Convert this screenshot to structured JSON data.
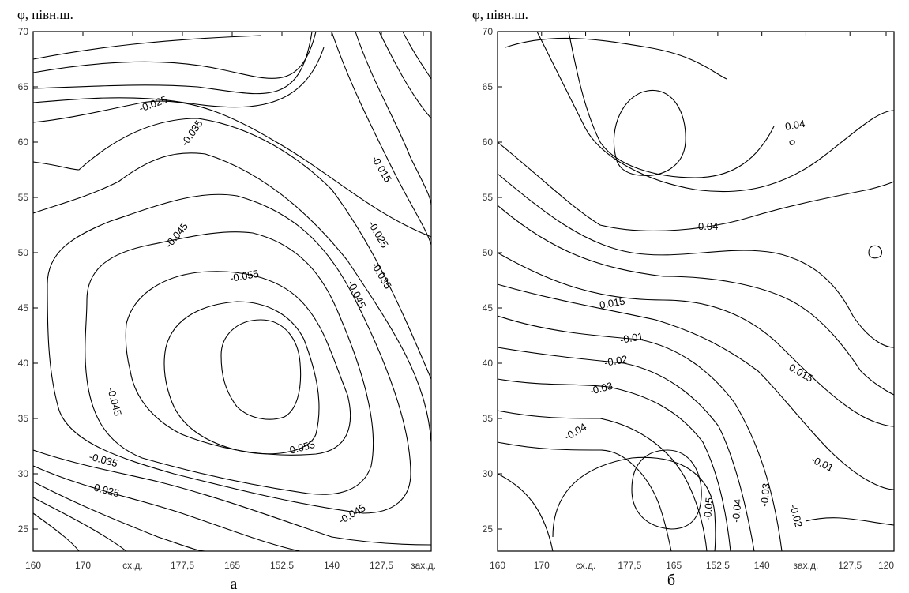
{
  "chart_data": [
    {
      "type": "contour",
      "panel_label": "а",
      "ylabel": "φ, півн.ш.",
      "yticks": [
        "70",
        "65",
        "60",
        "55",
        "50",
        "45",
        "40",
        "35",
        "30",
        "25"
      ],
      "xticks": [
        "160",
        "170",
        "сх.д.",
        "177,5",
        "165",
        "152,5",
        "140",
        "127,5",
        "зах.д."
      ],
      "ylim": [
        23,
        70
      ],
      "contour_labels": [
        "-0.025",
        "-0.035",
        "-0.015",
        "-0.045",
        "-0.025",
        "-0.035",
        "-0.055",
        "-0.045",
        "-0.045",
        "-0.035",
        "-0.025",
        "-0.055",
        "-0.045"
      ]
    },
    {
      "type": "contour",
      "panel_label": "б",
      "ylabel": "φ, півн.ш.",
      "yticks": [
        "70",
        "65",
        "60",
        "55",
        "50",
        "45",
        "40",
        "35",
        "30",
        "25"
      ],
      "xticks": [
        "160",
        "170",
        "сх.д.",
        "177,5",
        "165",
        "152,5",
        "140",
        "зах.д.",
        "127,5",
        "120"
      ],
      "ylim": [
        23,
        70
      ],
      "contour_labels": [
        "0.04",
        "0.04",
        "0.015",
        "-0.01",
        "-0.02",
        "-0.03",
        "-0.04",
        "0.015",
        "-0.01",
        "-0.05",
        "-0.04",
        "-0.03",
        "-0.02"
      ]
    }
  ]
}
